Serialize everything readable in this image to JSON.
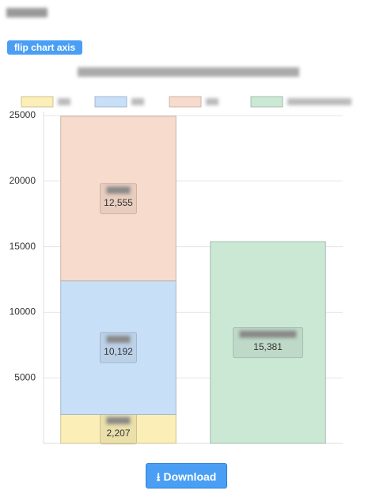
{
  "flip_button": "flip chart axis",
  "download_button": "Download",
  "chart_data": {
    "type": "stacked-bar",
    "categories": [
      null,
      null
    ],
    "series": [
      {
        "color": "#fbeeb6",
        "values": [
          2207,
          null
        ],
        "value_labels": [
          "2,207",
          null
        ]
      },
      {
        "color": "#c8dff8",
        "values": [
          10192,
          null
        ],
        "value_labels": [
          "10,192",
          null
        ]
      },
      {
        "color": "#f7dbcc",
        "values": [
          12555,
          null
        ],
        "value_labels": [
          "12,555",
          null
        ]
      },
      {
        "color": "#cbe8d4",
        "values": [
          null,
          15381
        ],
        "value_labels": [
          null,
          "15,381"
        ]
      }
    ],
    "ylim": [
      0,
      25000
    ],
    "yticks": [
      5000,
      10000,
      15000,
      20000,
      25000
    ],
    "grid": true
  }
}
